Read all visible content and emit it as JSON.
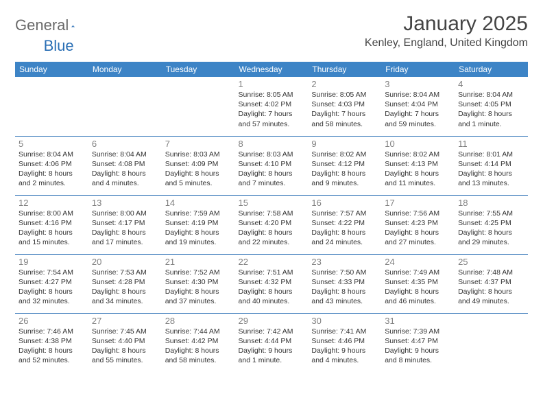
{
  "brand": {
    "part1": "General",
    "part2": "Blue"
  },
  "title": "January 2025",
  "location": "Kenley, England, United Kingdom",
  "header_bg": "#3d84c6",
  "border_color": "#2a6fb5",
  "logo_gray": "#6a6a6a",
  "logo_blue": "#2a6fb5",
  "day_headers": [
    "Sunday",
    "Monday",
    "Tuesday",
    "Wednesday",
    "Thursday",
    "Friday",
    "Saturday"
  ],
  "weeks": [
    [
      null,
      null,
      null,
      {
        "n": "1",
        "sr": "Sunrise: 8:05 AM",
        "ss": "Sunset: 4:02 PM",
        "d1": "Daylight: 7 hours",
        "d2": "and 57 minutes."
      },
      {
        "n": "2",
        "sr": "Sunrise: 8:05 AM",
        "ss": "Sunset: 4:03 PM",
        "d1": "Daylight: 7 hours",
        "d2": "and 58 minutes."
      },
      {
        "n": "3",
        "sr": "Sunrise: 8:04 AM",
        "ss": "Sunset: 4:04 PM",
        "d1": "Daylight: 7 hours",
        "d2": "and 59 minutes."
      },
      {
        "n": "4",
        "sr": "Sunrise: 8:04 AM",
        "ss": "Sunset: 4:05 PM",
        "d1": "Daylight: 8 hours",
        "d2": "and 1 minute."
      }
    ],
    [
      {
        "n": "5",
        "sr": "Sunrise: 8:04 AM",
        "ss": "Sunset: 4:06 PM",
        "d1": "Daylight: 8 hours",
        "d2": "and 2 minutes."
      },
      {
        "n": "6",
        "sr": "Sunrise: 8:04 AM",
        "ss": "Sunset: 4:08 PM",
        "d1": "Daylight: 8 hours",
        "d2": "and 4 minutes."
      },
      {
        "n": "7",
        "sr": "Sunrise: 8:03 AM",
        "ss": "Sunset: 4:09 PM",
        "d1": "Daylight: 8 hours",
        "d2": "and 5 minutes."
      },
      {
        "n": "8",
        "sr": "Sunrise: 8:03 AM",
        "ss": "Sunset: 4:10 PM",
        "d1": "Daylight: 8 hours",
        "d2": "and 7 minutes."
      },
      {
        "n": "9",
        "sr": "Sunrise: 8:02 AM",
        "ss": "Sunset: 4:12 PM",
        "d1": "Daylight: 8 hours",
        "d2": "and 9 minutes."
      },
      {
        "n": "10",
        "sr": "Sunrise: 8:02 AM",
        "ss": "Sunset: 4:13 PM",
        "d1": "Daylight: 8 hours",
        "d2": "and 11 minutes."
      },
      {
        "n": "11",
        "sr": "Sunrise: 8:01 AM",
        "ss": "Sunset: 4:14 PM",
        "d1": "Daylight: 8 hours",
        "d2": "and 13 minutes."
      }
    ],
    [
      {
        "n": "12",
        "sr": "Sunrise: 8:00 AM",
        "ss": "Sunset: 4:16 PM",
        "d1": "Daylight: 8 hours",
        "d2": "and 15 minutes."
      },
      {
        "n": "13",
        "sr": "Sunrise: 8:00 AM",
        "ss": "Sunset: 4:17 PM",
        "d1": "Daylight: 8 hours",
        "d2": "and 17 minutes."
      },
      {
        "n": "14",
        "sr": "Sunrise: 7:59 AM",
        "ss": "Sunset: 4:19 PM",
        "d1": "Daylight: 8 hours",
        "d2": "and 19 minutes."
      },
      {
        "n": "15",
        "sr": "Sunrise: 7:58 AM",
        "ss": "Sunset: 4:20 PM",
        "d1": "Daylight: 8 hours",
        "d2": "and 22 minutes."
      },
      {
        "n": "16",
        "sr": "Sunrise: 7:57 AM",
        "ss": "Sunset: 4:22 PM",
        "d1": "Daylight: 8 hours",
        "d2": "and 24 minutes."
      },
      {
        "n": "17",
        "sr": "Sunrise: 7:56 AM",
        "ss": "Sunset: 4:23 PM",
        "d1": "Daylight: 8 hours",
        "d2": "and 27 minutes."
      },
      {
        "n": "18",
        "sr": "Sunrise: 7:55 AM",
        "ss": "Sunset: 4:25 PM",
        "d1": "Daylight: 8 hours",
        "d2": "and 29 minutes."
      }
    ],
    [
      {
        "n": "19",
        "sr": "Sunrise: 7:54 AM",
        "ss": "Sunset: 4:27 PM",
        "d1": "Daylight: 8 hours",
        "d2": "and 32 minutes."
      },
      {
        "n": "20",
        "sr": "Sunrise: 7:53 AM",
        "ss": "Sunset: 4:28 PM",
        "d1": "Daylight: 8 hours",
        "d2": "and 34 minutes."
      },
      {
        "n": "21",
        "sr": "Sunrise: 7:52 AM",
        "ss": "Sunset: 4:30 PM",
        "d1": "Daylight: 8 hours",
        "d2": "and 37 minutes."
      },
      {
        "n": "22",
        "sr": "Sunrise: 7:51 AM",
        "ss": "Sunset: 4:32 PM",
        "d1": "Daylight: 8 hours",
        "d2": "and 40 minutes."
      },
      {
        "n": "23",
        "sr": "Sunrise: 7:50 AM",
        "ss": "Sunset: 4:33 PM",
        "d1": "Daylight: 8 hours",
        "d2": "and 43 minutes."
      },
      {
        "n": "24",
        "sr": "Sunrise: 7:49 AM",
        "ss": "Sunset: 4:35 PM",
        "d1": "Daylight: 8 hours",
        "d2": "and 46 minutes."
      },
      {
        "n": "25",
        "sr": "Sunrise: 7:48 AM",
        "ss": "Sunset: 4:37 PM",
        "d1": "Daylight: 8 hours",
        "d2": "and 49 minutes."
      }
    ],
    [
      {
        "n": "26",
        "sr": "Sunrise: 7:46 AM",
        "ss": "Sunset: 4:38 PM",
        "d1": "Daylight: 8 hours",
        "d2": "and 52 minutes."
      },
      {
        "n": "27",
        "sr": "Sunrise: 7:45 AM",
        "ss": "Sunset: 4:40 PM",
        "d1": "Daylight: 8 hours",
        "d2": "and 55 minutes."
      },
      {
        "n": "28",
        "sr": "Sunrise: 7:44 AM",
        "ss": "Sunset: 4:42 PM",
        "d1": "Daylight: 8 hours",
        "d2": "and 58 minutes."
      },
      {
        "n": "29",
        "sr": "Sunrise: 7:42 AM",
        "ss": "Sunset: 4:44 PM",
        "d1": "Daylight: 9 hours",
        "d2": "and 1 minute."
      },
      {
        "n": "30",
        "sr": "Sunrise: 7:41 AM",
        "ss": "Sunset: 4:46 PM",
        "d1": "Daylight: 9 hours",
        "d2": "and 4 minutes."
      },
      {
        "n": "31",
        "sr": "Sunrise: 7:39 AM",
        "ss": "Sunset: 4:47 PM",
        "d1": "Daylight: 9 hours",
        "d2": "and 8 minutes."
      },
      null
    ]
  ]
}
